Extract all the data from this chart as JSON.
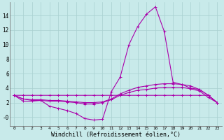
{
  "background_color": "#c8eaea",
  "grid_color": "#a8d0d0",
  "line_color": "#aa00aa",
  "marker": "+",
  "markersize": 3,
  "linewidth": 0.8,
  "xlabel": "Windchill (Refroidissement éolien,°C)",
  "xlabel_fontsize": 6,
  "ytick_labels": [
    "-0",
    "2",
    "4",
    "6",
    "8",
    "10",
    "12",
    "14"
  ],
  "ytick_values": [
    0,
    2,
    4,
    6,
    8,
    10,
    12,
    14
  ],
  "xtick_labels": [
    "0",
    "1",
    "2",
    "3",
    "4",
    "5",
    "6",
    "7",
    "8",
    "9",
    "10",
    "11",
    "12",
    "13",
    "14",
    "15",
    "16",
    "17",
    "18",
    "19",
    "20",
    "21",
    "22",
    "23"
  ],
  "ylim": [
    -1.2,
    15.8
  ],
  "xlim": [
    -0.5,
    23.5
  ],
  "series": [
    [
      3.0,
      2.2,
      2.2,
      2.3,
      1.5,
      1.2,
      0.9,
      0.5,
      -0.2,
      -0.4,
      -0.3,
      3.5,
      5.5,
      10.0,
      12.5,
      14.2,
      15.2,
      11.8,
      4.8,
      4.5,
      4.0,
      3.8,
      3.0,
      2.0
    ],
    [
      3.0,
      2.5,
      2.4,
      2.4,
      2.3,
      2.3,
      2.2,
      2.1,
      2.0,
      2.0,
      2.1,
      2.5,
      3.2,
      3.7,
      4.1,
      4.3,
      4.5,
      4.6,
      4.6,
      4.5,
      4.3,
      3.8,
      3.0,
      2.0
    ],
    [
      3.0,
      2.5,
      2.3,
      2.3,
      2.2,
      2.2,
      2.1,
      2.0,
      1.8,
      1.8,
      2.0,
      2.4,
      3.0,
      3.4,
      3.7,
      3.8,
      4.0,
      4.1,
      4.1,
      4.1,
      3.9,
      3.6,
      2.7,
      2.0
    ],
    [
      3.0,
      3.0,
      3.0,
      3.0,
      3.0,
      3.0,
      3.0,
      3.0,
      3.0,
      3.0,
      3.0,
      3.0,
      3.0,
      3.0,
      3.0,
      3.0,
      3.0,
      3.0,
      3.0,
      3.0,
      3.0,
      3.0,
      3.0,
      2.0
    ]
  ],
  "figsize": [
    3.2,
    2.0
  ],
  "dpi": 100
}
